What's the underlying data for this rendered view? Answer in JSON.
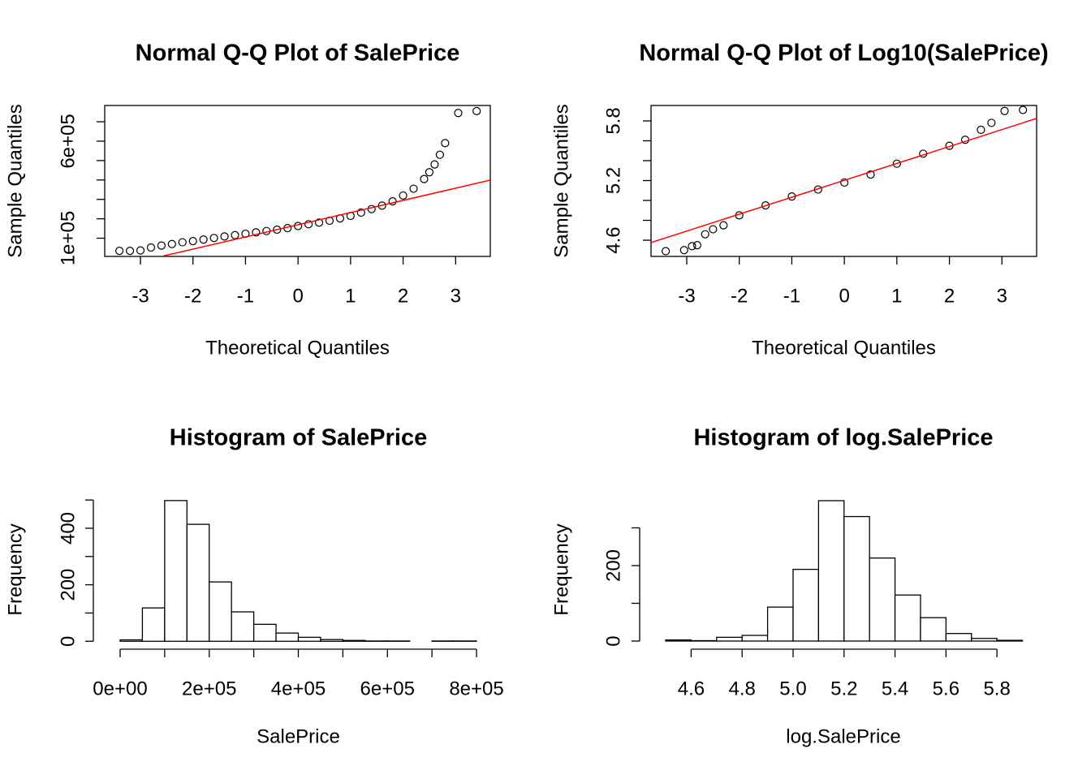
{
  "chart_data": [
    {
      "type": "qq",
      "title": "Normal Q-Q Plot of SalePrice",
      "xlabel": "Theoretical Quantiles",
      "ylabel": "Sample Quantiles",
      "xlim": [
        -3.68,
        3.66
      ],
      "ylim": [
        6100,
        783800
      ],
      "xticks": [
        -3,
        -2,
        -1,
        0,
        1,
        2,
        3
      ],
      "yticks": [
        {
          "value": 100000,
          "label": "1e+05"
        },
        {
          "value": 200000,
          "label": null
        },
        {
          "value": 300000,
          "label": null
        },
        {
          "value": 400000,
          "label": null
        },
        {
          "value": 500000,
          "label": null
        },
        {
          "value": 600000,
          "label": "6e+05"
        },
        {
          "value": 700000,
          "label": null
        }
      ],
      "points": {
        "color": "#000000",
        "x": [
          -3.4,
          -3.2,
          -3.0,
          -2.8,
          -2.6,
          -2.4,
          -2.2,
          -2.0,
          -1.8,
          -1.6,
          -1.4,
          -1.2,
          -1.0,
          -0.8,
          -0.6,
          -0.4,
          -0.2,
          0,
          0.2,
          0.4,
          0.6,
          0.8,
          1.0,
          1.2,
          1.4,
          1.6,
          1.8,
          2.0,
          2.2,
          2.4,
          2.5,
          2.6,
          2.7,
          2.8,
          3.05,
          3.4
        ],
        "y": [
          34900,
          35000,
          37000,
          52000,
          62000,
          70000,
          79000,
          85000,
          93000,
          101000,
          109000,
          116000,
          123000,
          130000,
          137000,
          144000,
          152000,
          163000,
          172000,
          180000,
          190000,
          202000,
          215000,
          232000,
          250000,
          268000,
          290000,
          320000,
          355000,
          405000,
          440000,
          480000,
          530000,
          590000,
          745000,
          755000
        ]
      },
      "line": {
        "color": "#ff0000",
        "x": [
          -3.68,
          3.66
        ],
        "y": [
          -61700,
          399000
        ]
      }
    },
    {
      "type": "qq",
      "title": "Normal Q-Q Plot of Log10(SalePrice)",
      "xlabel": "Theoretical Quantiles",
      "ylabel": "Sample Quantiles",
      "xlim": [
        -3.68,
        3.66
      ],
      "ylim": [
        4.437,
        5.955
      ],
      "xticks": [
        -3,
        -2,
        -1,
        0,
        1,
        2,
        3
      ],
      "yticks": [
        4.6,
        {
          "value": 4.8,
          "label": null
        },
        {
          "value": 5.0,
          "label": null
        },
        5.2,
        {
          "value": 5.4,
          "label": null
        },
        {
          "value": 5.6,
          "label": null
        },
        5.8
      ],
      "points": {
        "color": "#000000",
        "x": [
          -3.4,
          -3.05,
          -2.9,
          -2.8,
          -2.65,
          -2.5,
          -2.3,
          -2.0,
          -1.5,
          -1.0,
          -0.5,
          0,
          0.5,
          1.0,
          1.5,
          2.0,
          2.3,
          2.6,
          2.8,
          3.05,
          3.4
        ],
        "y": [
          4.49,
          4.5,
          4.54,
          4.55,
          4.66,
          4.71,
          4.75,
          4.85,
          4.95,
          5.04,
          5.11,
          5.18,
          5.26,
          5.37,
          5.47,
          5.55,
          5.61,
          5.71,
          5.78,
          5.9,
          5.91
        ]
      },
      "line": {
        "color": "#ff0000",
        "x": [
          -3.68,
          3.66
        ],
        "y": [
          4.576,
          5.825
        ]
      }
    },
    {
      "type": "histogram",
      "title": "Histogram of SalePrice",
      "xlabel": "SalePrice",
      "ylabel": "Frequency",
      "color": "#ffffff",
      "xlim": [
        -60100,
        860100
      ],
      "ylim": [
        -28,
        535
      ],
      "xticks": [
        {
          "value": 0,
          "label": "0e+00"
        },
        {
          "value": 100000,
          "label": null
        },
        {
          "value": 200000,
          "label": "2e+05"
        },
        {
          "value": 300000,
          "label": null
        },
        {
          "value": 400000,
          "label": "4e+05"
        },
        {
          "value": 500000,
          "label": null
        },
        {
          "value": 600000,
          "label": "6e+05"
        },
        {
          "value": 700000,
          "label": null
        },
        {
          "value": 800000,
          "label": "8e+05"
        }
      ],
      "yticks": [
        0,
        {
          "value": 100,
          "label": null
        },
        200,
        {
          "value": 300,
          "label": null
        },
        400,
        {
          "value": 500,
          "label": null
        }
      ],
      "bins": [
        0,
        50000,
        100000,
        150000,
        200000,
        250000,
        300000,
        350000,
        400000,
        450000,
        500000,
        550000,
        600000,
        650000,
        700000,
        750000,
        800000
      ],
      "values": [
        5,
        118,
        498,
        414,
        210,
        104,
        60,
        29,
        14,
        6,
        3,
        1,
        1,
        0,
        1,
        1
      ]
    },
    {
      "type": "histogram",
      "title": "Histogram of log.SalePrice",
      "xlabel": "log.SalePrice",
      "ylabel": "Frequency",
      "color": "#ffffff",
      "xlim": [
        4.398,
        5.997
      ],
      "ylim": [
        -21.5,
        400
      ],
      "xticks": [
        4.6,
        4.8,
        {
          "value": 5.0,
          "label": "5.0"
        },
        5.2,
        5.4,
        5.6,
        5.8
      ],
      "yticks": [
        0,
        {
          "value": 100,
          "label": null
        },
        200,
        {
          "value": 300,
          "label": null
        }
      ],
      "bins": [
        4.5,
        4.6,
        4.7,
        4.8,
        4.9,
        5.0,
        5.1,
        5.2,
        5.3,
        5.4,
        5.5,
        5.6,
        5.7,
        5.8,
        5.9
      ],
      "values": [
        3,
        1,
        10,
        15,
        90,
        190,
        372,
        330,
        220,
        122,
        62,
        20,
        7,
        2
      ]
    }
  ]
}
